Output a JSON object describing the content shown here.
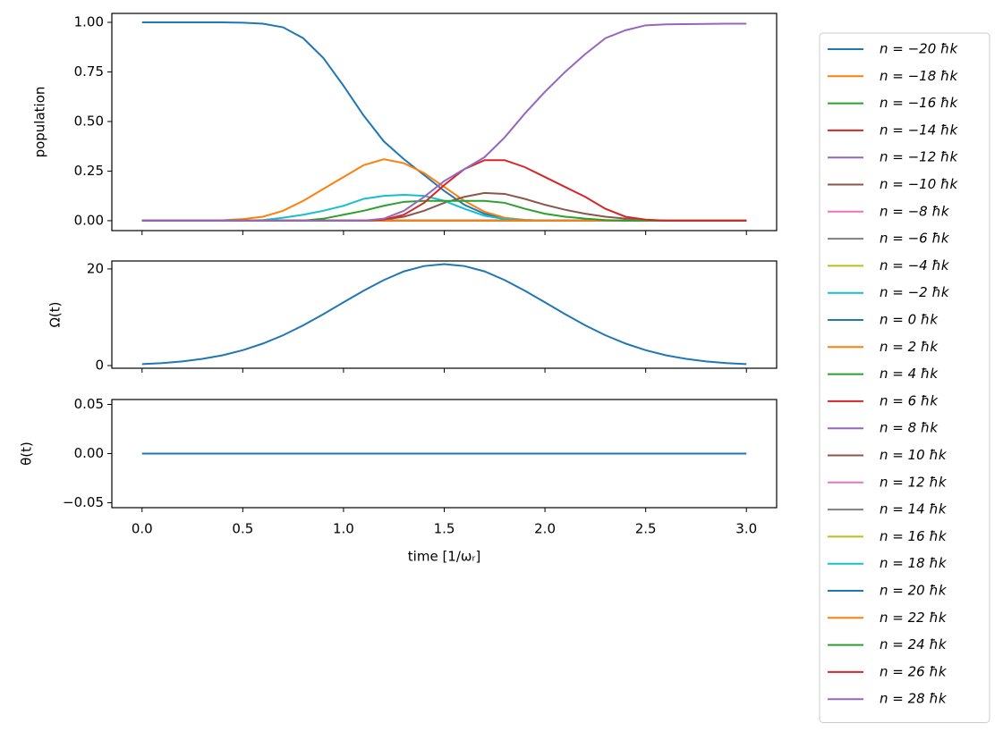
{
  "chart_data": [
    {
      "type": "line",
      "ylabel": "population",
      "legend": "outside right",
      "x": [
        0,
        0.1,
        0.2,
        0.3,
        0.4,
        0.5,
        0.6,
        0.7,
        0.8,
        0.9,
        1.0,
        1.1,
        1.2,
        1.3,
        1.4,
        1.5,
        1.6,
        1.7,
        1.8,
        1.9,
        2.0,
        2.1,
        2.2,
        2.3,
        2.4,
        2.5,
        2.6,
        2.7,
        2.8,
        2.9,
        3.0
      ],
      "xlim": [
        -0.15,
        3.15
      ],
      "xticks": [
        0,
        0.5,
        1,
        1.5,
        2,
        2.5,
        3
      ],
      "ylim": [
        -0.05,
        1.045
      ],
      "yticks": [
        {
          "value": 0,
          "label": "0.00"
        },
        {
          "value": 0.25,
          "label": "0.25"
        },
        {
          "value": 0.5,
          "label": "0.50"
        },
        {
          "value": 0.75,
          "label": "0.75"
        },
        {
          "value": 1,
          "label": "1.00"
        }
      ],
      "series": [
        {
          "name": "n = −20 ħk",
          "color": "#1f77b4",
          "values": [
            1,
            1,
            1,
            1,
            1,
            0.998,
            0.993,
            0.975,
            0.92,
            0.82,
            0.68,
            0.53,
            0.4,
            0.31,
            0.23,
            0.15,
            0.08,
            0.035,
            0.01,
            0.003,
            0,
            0,
            0,
            0,
            0,
            0,
            0,
            0,
            0,
            0,
            0
          ]
        },
        {
          "name": "n = −18 ħk",
          "color": "#ff7f0e",
          "values": [
            0,
            0,
            0,
            0,
            0.002,
            0.008,
            0.02,
            0.05,
            0.1,
            0.16,
            0.22,
            0.28,
            0.31,
            0.29,
            0.24,
            0.17,
            0.1,
            0.045,
            0.015,
            0.004,
            0,
            0,
            0,
            0,
            0,
            0,
            0,
            0,
            0,
            0,
            0
          ]
        },
        {
          "name": "n = −16 ħk",
          "color": "#2ca02c",
          "values": [
            0,
            0,
            0,
            0,
            0,
            0,
            0,
            0,
            0,
            0,
            0,
            0,
            0,
            0,
            0,
            0,
            0,
            0,
            0,
            0,
            0,
            0,
            0,
            0,
            0,
            0,
            0,
            0,
            0,
            0,
            0
          ]
        },
        {
          "name": "n = −14 ħk",
          "color": "#d62728",
          "values": [
            0,
            0,
            0,
            0,
            0,
            0,
            0,
            0,
            0,
            0,
            0,
            0,
            0,
            0,
            0,
            0,
            0,
            0,
            0,
            0,
            0,
            0,
            0,
            0,
            0,
            0,
            0,
            0,
            0,
            0,
            0
          ]
        },
        {
          "name": "n = −12 ħk",
          "color": "#9467bd",
          "values": [
            0,
            0,
            0,
            0,
            0,
            0,
            0,
            0,
            0,
            0,
            0,
            0,
            0,
            0,
            0,
            0,
            0,
            0,
            0,
            0,
            0,
            0,
            0,
            0,
            0,
            0,
            0,
            0,
            0,
            0,
            0
          ]
        },
        {
          "name": "n = −10 ħk",
          "color": "#8c564b",
          "values": [
            0,
            0,
            0,
            0,
            0,
            0,
            0,
            0,
            0,
            0,
            0,
            0,
            0,
            0,
            0,
            0,
            0,
            0,
            0,
            0,
            0,
            0,
            0,
            0,
            0,
            0,
            0,
            0,
            0,
            0,
            0
          ]
        },
        {
          "name": "n = −8 ħk",
          "color": "#e377c2",
          "values": [
            0,
            0,
            0,
            0,
            0,
            0,
            0,
            0,
            0,
            0,
            0,
            0,
            0,
            0,
            0,
            0,
            0,
            0,
            0,
            0,
            0,
            0,
            0,
            0,
            0,
            0,
            0,
            0,
            0,
            0,
            0
          ]
        },
        {
          "name": "n = −6 ħk",
          "color": "#7f7f7f",
          "values": [
            0,
            0,
            0,
            0,
            0,
            0,
            0,
            0,
            0,
            0,
            0,
            0,
            0,
            0,
            0,
            0,
            0,
            0,
            0,
            0,
            0,
            0,
            0,
            0,
            0,
            0,
            0,
            0,
            0,
            0,
            0
          ]
        },
        {
          "name": "n = −4 ħk",
          "color": "#bcbd22",
          "values": [
            0,
            0,
            0,
            0,
            0,
            0,
            0,
            0,
            0,
            0,
            0,
            0,
            0,
            0,
            0,
            0,
            0,
            0,
            0,
            0,
            0,
            0,
            0,
            0,
            0,
            0,
            0,
            0,
            0,
            0,
            0
          ]
        },
        {
          "name": "n = −2 ħk",
          "color": "#17becf",
          "values": [
            0,
            0,
            0,
            0,
            0,
            0,
            0,
            0,
            0,
            0,
            0,
            0,
            0,
            0,
            0,
            0,
            0,
            0,
            0,
            0,
            0,
            0,
            0,
            0,
            0,
            0,
            0,
            0,
            0,
            0,
            0
          ]
        },
        {
          "name": "n = 0 ħk",
          "color": "#1f77b4",
          "values": [
            0,
            0,
            0,
            0,
            0,
            0,
            0,
            0,
            0,
            0,
            0,
            0,
            0,
            0,
            0,
            0,
            0,
            0,
            0,
            0,
            0,
            0,
            0,
            0,
            0,
            0,
            0,
            0,
            0,
            0,
            0
          ]
        },
        {
          "name": "n = 2 ħk",
          "color": "#ff7f0e",
          "values": [
            0,
            0,
            0,
            0,
            0,
            0,
            0,
            0,
            0,
            0,
            0,
            0,
            0,
            0,
            0,
            0,
            0,
            0,
            0,
            0,
            0,
            0,
            0,
            0,
            0,
            0,
            0,
            0,
            0,
            0,
            0
          ]
        },
        {
          "name": "n = 4 ħk",
          "color": "#2ca02c",
          "values": [
            0,
            0,
            0,
            0,
            0,
            0,
            0,
            0,
            0,
            0,
            0,
            0,
            0,
            0,
            0,
            0,
            0,
            0,
            0,
            0,
            0,
            0,
            0,
            0,
            0,
            0,
            0,
            0,
            0,
            0,
            0
          ]
        },
        {
          "name": "n = 6 ħk",
          "color": "#d62728",
          "values": [
            0,
            0,
            0,
            0,
            0,
            0,
            0,
            0,
            0,
            0,
            0,
            0,
            0,
            0,
            0,
            0,
            0,
            0,
            0,
            0,
            0,
            0,
            0,
            0,
            0,
            0,
            0,
            0,
            0,
            0,
            0
          ]
        },
        {
          "name": "n = 8 ħk",
          "color": "#9467bd",
          "values": [
            0,
            0,
            0,
            0,
            0,
            0,
            0,
            0,
            0,
            0,
            0,
            0,
            0,
            0,
            0,
            0,
            0,
            0,
            0,
            0,
            0,
            0,
            0,
            0,
            0,
            0,
            0,
            0,
            0,
            0,
            0
          ]
        },
        {
          "name": "n = 10 ħk",
          "color": "#8c564b",
          "values": [
            0,
            0,
            0,
            0,
            0,
            0,
            0,
            0,
            0,
            0,
            0,
            0,
            0.005,
            0.02,
            0.05,
            0.09,
            0.12,
            0.14,
            0.135,
            0.11,
            0.08,
            0.055,
            0.035,
            0.02,
            0.01,
            0.004,
            0,
            0,
            0,
            0,
            0
          ]
        },
        {
          "name": "n = 12 ħk",
          "color": "#e377c2",
          "values": [
            0,
            0,
            0,
            0,
            0,
            0,
            0,
            0,
            0,
            0,
            0,
            0,
            0,
            0,
            0,
            0,
            0,
            0,
            0,
            0,
            0,
            0,
            0,
            0,
            0,
            0,
            0,
            0,
            0,
            0,
            0
          ]
        },
        {
          "name": "n = 14 ħk",
          "color": "#7f7f7f",
          "values": [
            0,
            0,
            0,
            0,
            0,
            0,
            0,
            0,
            0,
            0,
            0,
            0,
            0,
            0,
            0,
            0,
            0,
            0,
            0,
            0,
            0,
            0,
            0,
            0,
            0,
            0,
            0,
            0,
            0,
            0,
            0
          ]
        },
        {
          "name": "n = 16 ħk",
          "color": "#bcbd22",
          "values": [
            0,
            0,
            0,
            0,
            0,
            0,
            0,
            0,
            0,
            0,
            0,
            0,
            0,
            0,
            0,
            0,
            0,
            0,
            0,
            0,
            0,
            0,
            0,
            0,
            0,
            0,
            0,
            0,
            0,
            0,
            0
          ]
        },
        {
          "name": "n = 18 ħk",
          "color": "#17becf",
          "values": [
            0,
            0,
            0,
            0,
            0,
            0,
            0.003,
            0.015,
            0.03,
            0.05,
            0.075,
            0.11,
            0.125,
            0.13,
            0.125,
            0.1,
            0.06,
            0.025,
            0.008,
            0.002,
            0,
            0,
            0,
            0,
            0,
            0,
            0,
            0,
            0,
            0,
            0
          ]
        },
        {
          "name": "n = 20 ħk",
          "color": "#1f77b4",
          "values": [
            0,
            0,
            0,
            0,
            0,
            0,
            0,
            0,
            0,
            0,
            0,
            0,
            0,
            0,
            0,
            0,
            0,
            0,
            0,
            0,
            0,
            0,
            0,
            0,
            0,
            0,
            0,
            0,
            0,
            0,
            0
          ]
        },
        {
          "name": "n = 22 ħk",
          "color": "#ff7f0e",
          "values": [
            0,
            0,
            0,
            0,
            0,
            0,
            0,
            0,
            0,
            0,
            0,
            0,
            0,
            0,
            0,
            0,
            0,
            0,
            0,
            0,
            0,
            0,
            0,
            0,
            0,
            0,
            0,
            0,
            0,
            0,
            0
          ]
        },
        {
          "name": "n = 24 ħk",
          "color": "#2ca02c",
          "values": [
            0,
            0,
            0,
            0,
            0,
            0,
            0,
            0,
            0,
            0.01,
            0.03,
            0.05,
            0.075,
            0.095,
            0.1,
            0.1,
            0.1,
            0.1,
            0.09,
            0.06,
            0.035,
            0.02,
            0.01,
            0.003,
            0,
            0,
            0,
            0,
            0,
            0,
            0
          ]
        },
        {
          "name": "n = 26 ħk",
          "color": "#d62728",
          "values": [
            0,
            0,
            0,
            0,
            0,
            0,
            0,
            0,
            0,
            0,
            0,
            0,
            0.005,
            0.03,
            0.09,
            0.18,
            0.26,
            0.305,
            0.305,
            0.27,
            0.22,
            0.17,
            0.12,
            0.06,
            0.02,
            0.005,
            0,
            0,
            0,
            0,
            0
          ]
        },
        {
          "name": "n = 28 ħk",
          "color": "#9467bd",
          "values": [
            0,
            0,
            0,
            0,
            0,
            0,
            0,
            0,
            0,
            0,
            0,
            0,
            0.01,
            0.05,
            0.12,
            0.2,
            0.26,
            0.32,
            0.42,
            0.54,
            0.65,
            0.75,
            0.84,
            0.92,
            0.96,
            0.985,
            0.99,
            0.991,
            0.992,
            0.993,
            0.993
          ]
        }
      ]
    },
    {
      "type": "line",
      "ylabel": "Ω(t)",
      "x": [
        0,
        0.1,
        0.2,
        0.3,
        0.4,
        0.5,
        0.6,
        0.7,
        0.8,
        0.9,
        1.0,
        1.1,
        1.2,
        1.3,
        1.4,
        1.5,
        1.6,
        1.7,
        1.8,
        1.9,
        2.0,
        2.1,
        2.2,
        2.3,
        2.4,
        2.5,
        2.6,
        2.7,
        2.8,
        2.9,
        3.0
      ],
      "xlim": [
        -0.15,
        3.15
      ],
      "xticks": [
        0,
        0.5,
        1,
        1.5,
        2,
        2.5,
        3
      ],
      "ylim": [
        -0.55,
        21.65
      ],
      "yticks": [
        0,
        20
      ],
      "series": [
        {
          "color": "#1f77b4",
          "values": [
            0.3,
            0.52,
            0.87,
            1.39,
            2.14,
            3.18,
            4.56,
            6.27,
            8.33,
            10.65,
            13.1,
            15.5,
            17.7,
            19.5,
            20.6,
            21,
            20.6,
            19.5,
            17.7,
            15.5,
            13.1,
            10.65,
            8.33,
            6.27,
            4.56,
            3.18,
            2.14,
            1.39,
            0.87,
            0.52,
            0.3
          ]
        }
      ]
    },
    {
      "type": "line",
      "ylabel": "θ(t)",
      "xlabel": "time [1/ωᵣ]",
      "x": [
        0,
        0.1,
        0.2,
        0.3,
        0.4,
        0.5,
        0.6,
        0.7,
        0.8,
        0.9,
        1.0,
        1.1,
        1.2,
        1.3,
        1.4,
        1.5,
        1.6,
        1.7,
        1.8,
        1.9,
        2.0,
        2.1,
        2.2,
        2.3,
        2.4,
        2.5,
        2.6,
        2.7,
        2.8,
        2.9,
        3.0
      ],
      "xlim": [
        -0.15,
        3.15
      ],
      "xticks": [
        {
          "value": 0,
          "label": "0.0"
        },
        {
          "value": 0.5,
          "label": "0.5"
        },
        {
          "value": 1,
          "label": "1.0"
        },
        {
          "value": 1.5,
          "label": "1.5"
        },
        {
          "value": 2,
          "label": "2.0"
        },
        {
          "value": 2.5,
          "label": "2.5"
        },
        {
          "value": 3,
          "label": "3.0"
        }
      ],
      "ylim": [
        -0.055,
        0.055
      ],
      "yticks": [
        {
          "value": -0.05,
          "label": "−0.05"
        },
        {
          "value": 0,
          "label": "0.00"
        },
        {
          "value": 0.05,
          "label": "0.05"
        }
      ],
      "series": [
        {
          "color": "#1f77b4",
          "values": [
            0,
            0,
            0,
            0,
            0,
            0,
            0,
            0,
            0,
            0,
            0,
            0,
            0,
            0,
            0,
            0,
            0,
            0,
            0,
            0,
            0,
            0,
            0,
            0,
            0,
            0,
            0,
            0,
            0,
            0,
            0
          ]
        }
      ]
    }
  ]
}
